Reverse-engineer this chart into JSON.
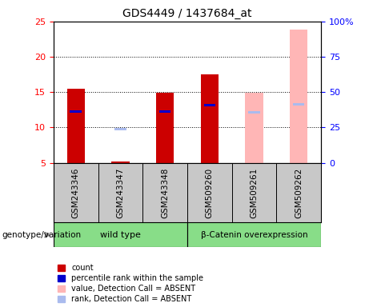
{
  "title": "GDS4449 / 1437684_at",
  "samples": [
    "GSM243346",
    "GSM243347",
    "GSM243348",
    "GSM509260",
    "GSM509261",
    "GSM509262"
  ],
  "ylim_left": [
    5,
    25
  ],
  "ylim_right": [
    0,
    100
  ],
  "yticks_left": [
    5,
    10,
    15,
    20,
    25
  ],
  "yticks_right": [
    0,
    25,
    50,
    75,
    100
  ],
  "yticklabels_right": [
    "0",
    "25",
    "50",
    "75",
    "100%"
  ],
  "bar_width": 0.4,
  "count_color": "#CC0000",
  "rank_color": "#0000CC",
  "absent_value_color": "#FFB6B6",
  "absent_rank_color": "#AABBEE",
  "bars": {
    "GSM243346": {
      "type": "present",
      "count": 15.5,
      "rank": 12.2
    },
    "GSM243347": {
      "type": "absent_rank_only",
      "absent_rank": 9.75,
      "stub": 5.15
    },
    "GSM243348": {
      "type": "present",
      "count": 14.9,
      "rank": 12.2
    },
    "GSM509260": {
      "type": "present",
      "count": 17.5,
      "rank": 13.2
    },
    "GSM509261": {
      "type": "absent_value",
      "absent_value": 14.9,
      "absent_rank": 12.1
    },
    "GSM509262": {
      "type": "absent_value",
      "absent_value": 23.8,
      "absent_rank": 13.3
    }
  },
  "legend_items": [
    {
      "label": "count",
      "color": "#CC0000"
    },
    {
      "label": "percentile rank within the sample",
      "color": "#0000CC"
    },
    {
      "label": "value, Detection Call = ABSENT",
      "color": "#FFB6B6"
    },
    {
      "label": "rank, Detection Call = ABSENT",
      "color": "#AABBEE"
    }
  ],
  "genotype_label": "genotype/variation",
  "bg_color": "#C8C8C8",
  "green_color": "#88DD88",
  "plot_bg": "#FFFFFF"
}
